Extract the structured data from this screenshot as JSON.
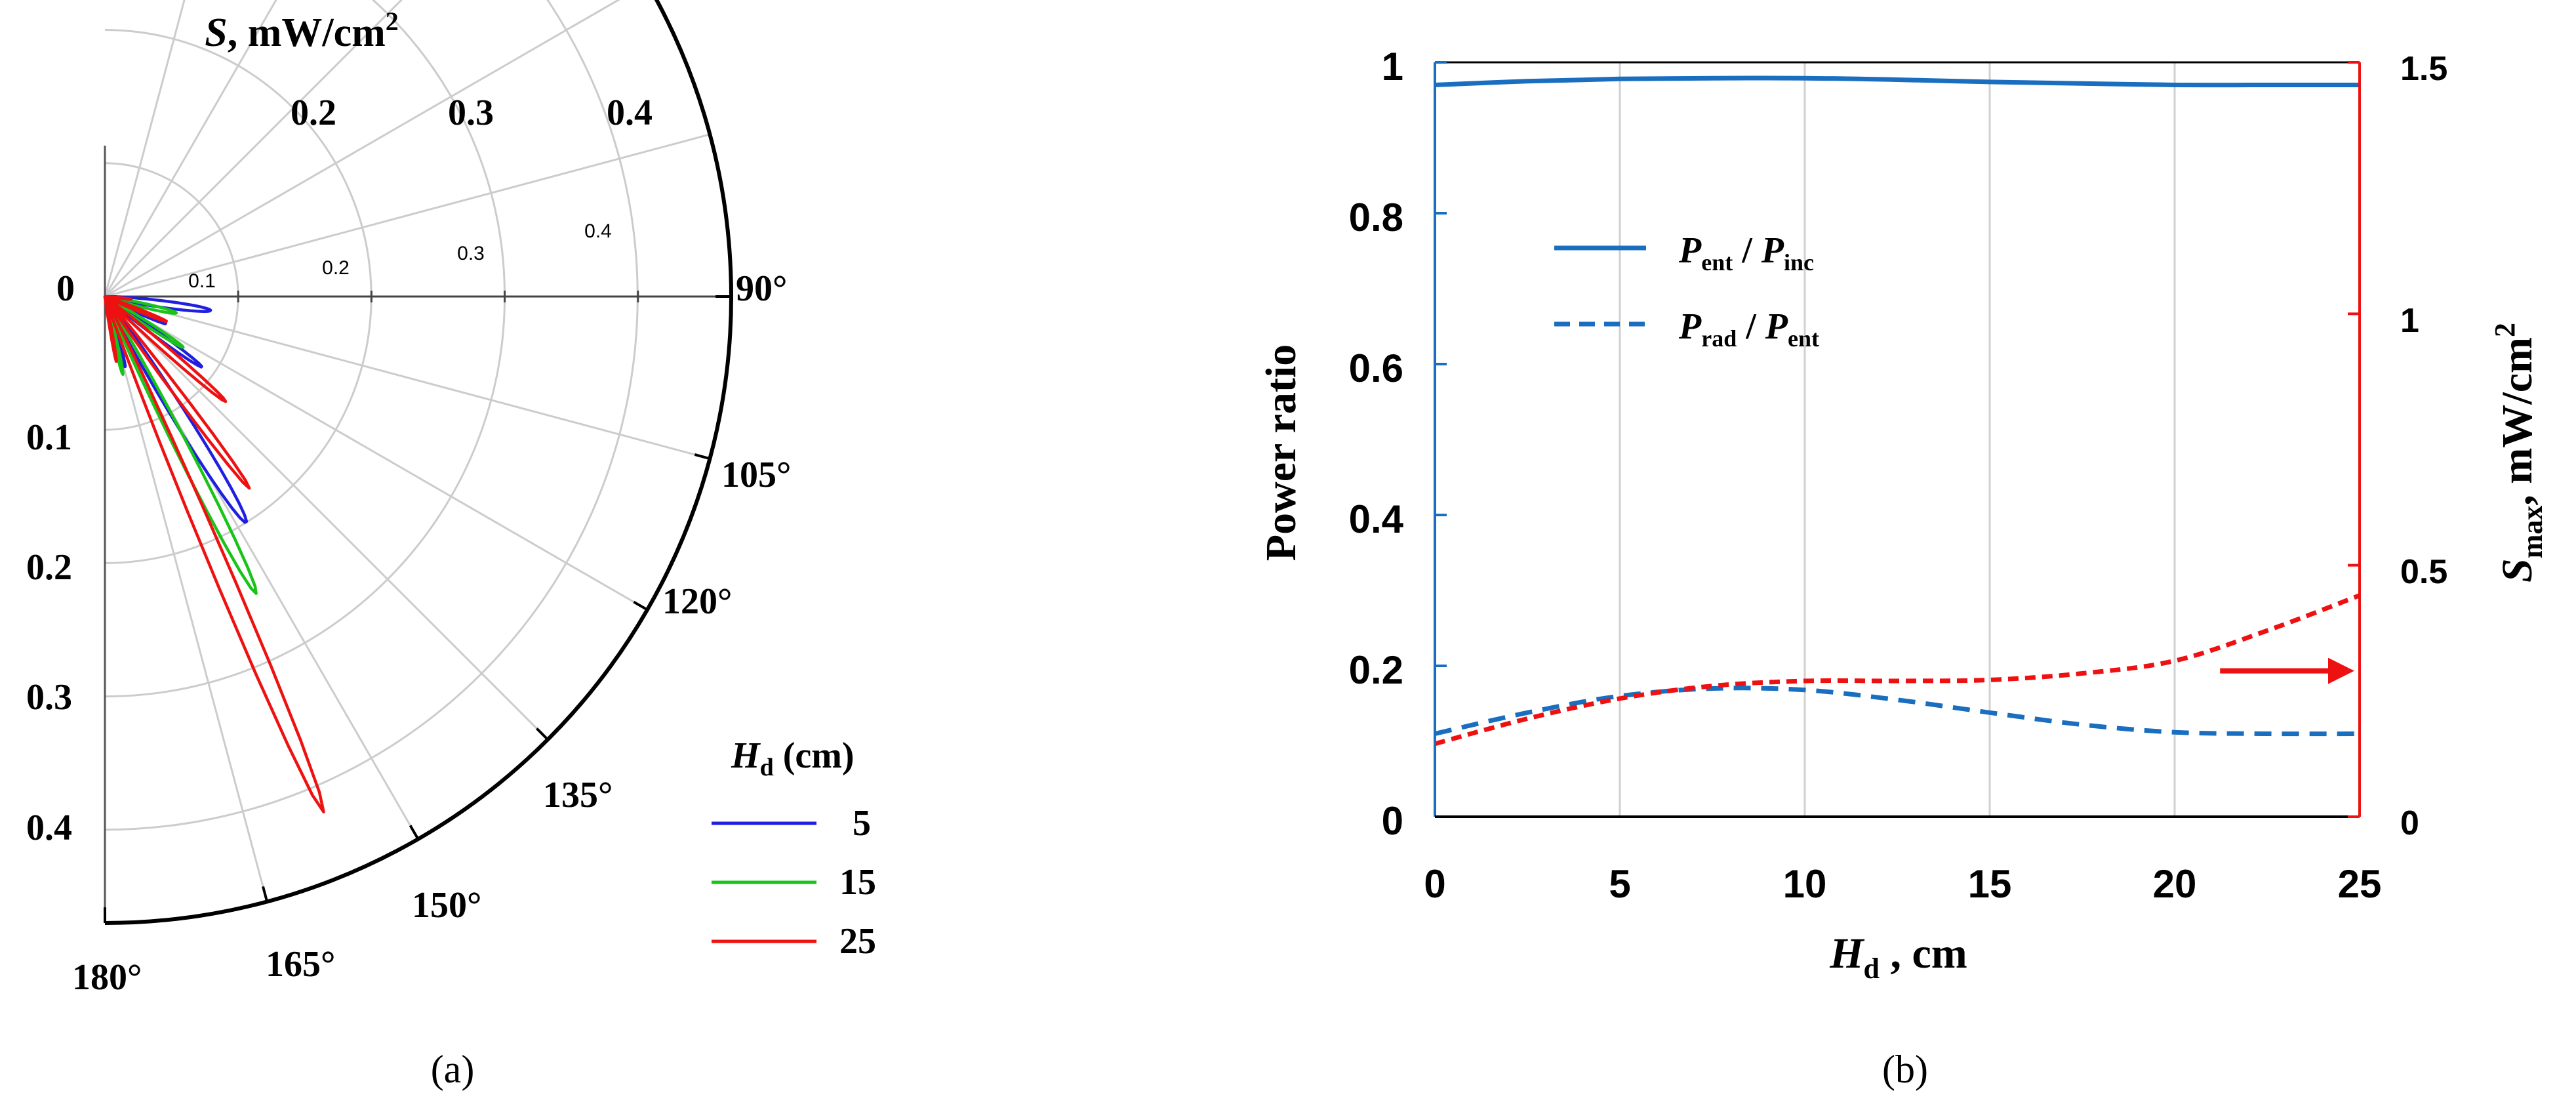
{
  "chart_data": [
    {
      "panel": "a",
      "type": "polar",
      "caption": "(a)",
      "title_var": "S",
      "title_unit": ", mW/cm",
      "title_sup": "2",
      "radial_top_ticks": [
        "0.2",
        "0.3",
        "0.4"
      ],
      "radial_inner_ticks": [
        "0.1",
        "0.2",
        "0.3",
        "0.4"
      ],
      "radial_left_ticks": [
        "0",
        "0.1",
        "0.2",
        "0.3",
        "0.4"
      ],
      "angle_labels": [
        "90°",
        "105°",
        "120°",
        "135°",
        "150°",
        "165°",
        "180°"
      ],
      "rmax": 0.47,
      "legend": {
        "title_var": "H",
        "title_sub": "d",
        "title_unit": " (cm)",
        "entries": [
          "5",
          "15",
          "25"
        ]
      },
      "colors": {
        "5": "#1f1fe0",
        "15": "#18c418",
        "25": "#ee1111"
      },
      "series": [
        {
          "name": "5",
          "lobes": [
            {
              "center_deg": 97.5,
              "peak": 0.08,
              "width_deg": 10
            },
            {
              "center_deg": 114,
              "peak": 0.05,
              "width_deg": 8
            },
            {
              "center_deg": 126,
              "peak": 0.09,
              "width_deg": 7
            },
            {
              "center_deg": 148,
              "peak": 0.2,
              "width_deg": 8.5
            },
            {
              "center_deg": 164,
              "peak": 0.055,
              "width_deg": 7
            }
          ]
        },
        {
          "name": "15",
          "lobes": [
            {
              "center_deg": 103,
              "peak": 0.055,
              "width_deg": 9
            },
            {
              "center_deg": 123,
              "peak": 0.07,
              "width_deg": 7
            },
            {
              "center_deg": 153,
              "peak": 0.25,
              "width_deg": 6.5
            },
            {
              "center_deg": 167,
              "peak": 0.06,
              "width_deg": 6
            }
          ]
        },
        {
          "name": "25",
          "lobes": [
            {
              "center_deg": 96,
              "peak": 0.02,
              "width_deg": 5
            },
            {
              "center_deg": 112,
              "peak": 0.05,
              "width_deg": 6
            },
            {
              "center_deg": 131,
              "peak": 0.12,
              "width_deg": 6
            },
            {
              "center_deg": 143,
              "peak": 0.18,
              "width_deg": 5
            },
            {
              "center_deg": 157,
              "peak": 0.42,
              "width_deg": 5
            },
            {
              "center_deg": 170,
              "peak": 0.05,
              "width_deg": 4
            }
          ]
        }
      ]
    },
    {
      "panel": "b",
      "type": "line",
      "caption": "(b)",
      "xlabel_var": "H",
      "xlabel_sub": "d",
      "xlabel_unit": " , cm",
      "ylabel": "Power ratio",
      "y2label_var": "S",
      "y2label_sub": "max",
      "y2label_unit": ", mW/cm",
      "y2label_sup": "2",
      "xlim": [
        0,
        25
      ],
      "ylim": [
        0,
        1
      ],
      "y2lim": [
        0,
        1.5
      ],
      "xticks": [
        "0",
        "5",
        "10",
        "15",
        "20",
        "25"
      ],
      "yticks": [
        "0",
        "0.2",
        "0.4",
        "0.6",
        "0.8",
        "1"
      ],
      "y2ticks": [
        "0",
        "0.5",
        "1",
        "1.5"
      ],
      "xtick_values": [
        0,
        5,
        10,
        15,
        20,
        25
      ],
      "ytick_values": [
        0,
        0.2,
        0.4,
        0.6,
        0.8,
        1
      ],
      "y2tick_values": [
        0,
        0.5,
        1,
        1.5
      ],
      "legend": [
        {
          "style": "solid",
          "num_var": "P",
          "num_sub": "ent",
          "den_var": "P",
          "den_sub": "inc"
        },
        {
          "style": "dashed",
          "num_var": "P",
          "num_sub": "rad",
          "den_var": "P",
          "den_sub": "ent"
        }
      ],
      "colors": {
        "left": "#1a6ec0",
        "right": "#ee1111"
      },
      "series": [
        {
          "name": "Pent/Pinc",
          "axis": "left",
          "style": "solid",
          "x": [
            0,
            2.5,
            5,
            7.5,
            10,
            12.5,
            15,
            17.5,
            20,
            22.5,
            25
          ],
          "y": [
            0.97,
            0.975,
            0.978,
            0.979,
            0.979,
            0.977,
            0.974,
            0.972,
            0.97,
            0.97,
            0.97
          ]
        },
        {
          "name": "Prad/Pent",
          "axis": "left",
          "style": "dashed",
          "x": [
            0,
            2.5,
            5,
            7.5,
            10,
            12.5,
            15,
            17.5,
            20,
            22.5,
            25
          ],
          "y": [
            0.11,
            0.138,
            0.16,
            0.17,
            0.168,
            0.155,
            0.138,
            0.122,
            0.112,
            0.11,
            0.11
          ]
        },
        {
          "name": "Smax",
          "axis": "right",
          "style": "dashed",
          "x": [
            0,
            2.5,
            5,
            7.5,
            10,
            12.5,
            15,
            17.5,
            20,
            22.5,
            25
          ],
          "y": [
            0.145,
            0.195,
            0.235,
            0.26,
            0.27,
            0.27,
            0.272,
            0.285,
            0.31,
            0.37,
            0.44
          ]
        }
      ],
      "arrow_at": {
        "x": 23,
        "y2": 0.29
      }
    }
  ]
}
